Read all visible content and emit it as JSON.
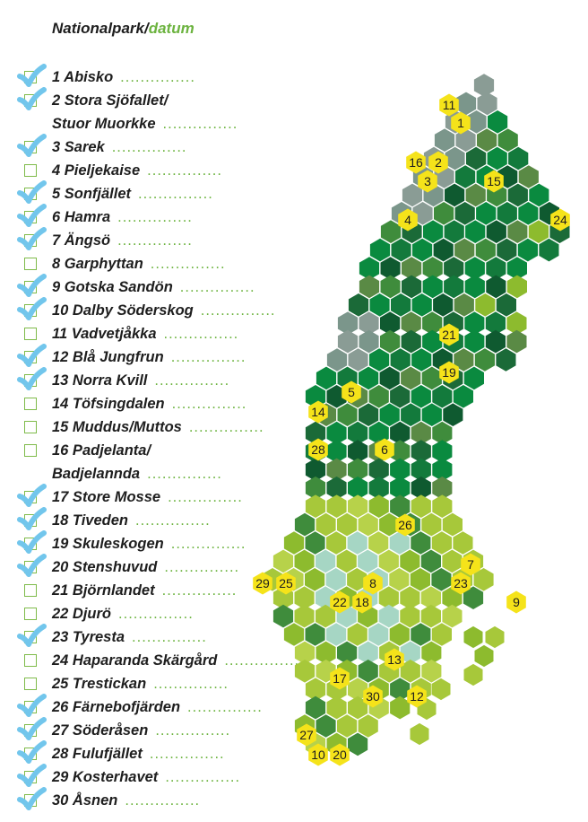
{
  "header": {
    "title": "Nationalpark/",
    "title_accent": "datum"
  },
  "dots": "...............",
  "colors": {
    "check_blue": "#72c6ec",
    "box_green": "#7fbb4a",
    "dots_green": "#6cb33f",
    "marker_yellow": "#f5e31a",
    "hex_greys": [
      "#8a9c95",
      "#7b968b"
    ],
    "hex_darks": [
      "#0f5a30",
      "#1b6a38",
      "#137a3c"
    ],
    "hex_mids": [
      "#0a8a3f",
      "#3f8c3c",
      "#5a8a45"
    ],
    "hex_limes": [
      "#8dbb2e",
      "#a7c83a",
      "#b7d24a"
    ],
    "hex_pale": [
      "#a6d6c4",
      "#bfe3d3"
    ]
  },
  "parks": [
    {
      "label": "1 Abisko",
      "checked": true
    },
    {
      "label": "2 Stora Sjöfallet/",
      "checked": true
    },
    {
      "label": "Stuor Muorkke",
      "continuation": true
    },
    {
      "label": "3 Sarek",
      "checked": true
    },
    {
      "label": "4 Pieljekaise",
      "checked": false
    },
    {
      "label": "5 Sonfjället",
      "checked": true
    },
    {
      "label": "6 Hamra",
      "checked": true
    },
    {
      "label": "7 Ängsö",
      "checked": true
    },
    {
      "label": "8 Garphyttan",
      "checked": false
    },
    {
      "label": "9 Gotska Sandön",
      "checked": true
    },
    {
      "label": "10 Dalby Söderskog",
      "checked": true
    },
    {
      "label": "11 Vadvetjåkka",
      "checked": false
    },
    {
      "label": "12 Blå Jungfrun",
      "checked": true
    },
    {
      "label": "13 Norra Kvill",
      "checked": true
    },
    {
      "label": "14 Töfsingdalen",
      "checked": false
    },
    {
      "label": "15 Muddus/Muttos",
      "checked": false
    },
    {
      "label": "16 Padjelanta/",
      "checked": false
    },
    {
      "label": "Badjelannda",
      "continuation": true
    },
    {
      "label": "17 Store Mosse",
      "checked": true
    },
    {
      "label": "18 Tiveden",
      "checked": true
    },
    {
      "label": "19 Skuleskogen",
      "checked": true
    },
    {
      "label": "20 Stenshuvud",
      "checked": true
    },
    {
      "label": "21 Björnlandet",
      "checked": false
    },
    {
      "label": "22 Djurö",
      "checked": false
    },
    {
      "label": "23 Tyresta",
      "checked": true
    },
    {
      "label": "24 Haparanda Skärgård",
      "checked": false
    },
    {
      "label": "25 Trestickan",
      "checked": false
    },
    {
      "label": "26 Färnebofjärden",
      "checked": true
    },
    {
      "label": "27 Söderåsen",
      "checked": true
    },
    {
      "label": "28 Fulufjället",
      "checked": true
    },
    {
      "label": "29 Kosterhavet",
      "checked": true
    },
    {
      "label": "30 Åsnen",
      "checked": true
    }
  ],
  "markers": [
    "11",
    "1",
    "16",
    "2",
    "3",
    "15",
    "4",
    "24",
    "21",
    "19",
    "5",
    "14",
    "28",
    "6",
    "26",
    "7",
    "23",
    "29",
    "25",
    "8",
    "22",
    "18",
    "9",
    "13",
    "17",
    "30",
    "12",
    "27",
    "10",
    "20"
  ]
}
